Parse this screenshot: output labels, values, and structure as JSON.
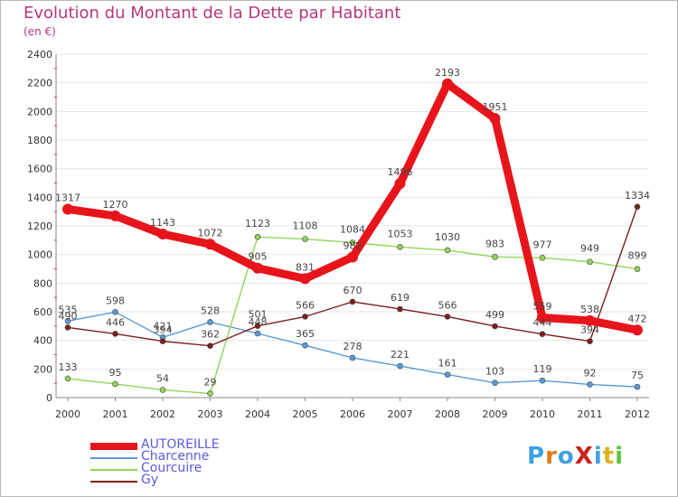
{
  "title": "Evolution du Montant de la Dette par Habitant",
  "subtitle": "(en €)",
  "logo_text": "ProXiti",
  "chart_data": {
    "type": "line",
    "title": "Evolution du Montant de la Dette par Habitant",
    "subtitle": "(en €)",
    "xlabel": "",
    "ylabel": "",
    "categories": [
      "2000",
      "2001",
      "2002",
      "2003",
      "2004",
      "2005",
      "2006",
      "2007",
      "2008",
      "2009",
      "2010",
      "2011",
      "2012"
    ],
    "ylim": [
      0,
      2400
    ],
    "yticks": [
      0,
      200,
      400,
      600,
      800,
      1000,
      1200,
      1400,
      1600,
      1800,
      2000,
      2200,
      2400
    ],
    "grid": "horizontal",
    "legend_position": "bottom-left",
    "series": [
      {
        "name": "AUTOREILLE",
        "color": "#e8141c",
        "values": [
          1317,
          1270,
          1143,
          1072,
          905,
          831,
          982,
          1496,
          2193,
          1951,
          559,
          538,
          472
        ]
      },
      {
        "name": "Charcenne",
        "color": "#5b9bd5",
        "values": [
          535,
          598,
          421,
          528,
          448,
          365,
          278,
          221,
          161,
          103,
          119,
          92,
          75
        ]
      },
      {
        "name": "Courcuire",
        "color": "#90d458",
        "values": [
          133,
          95,
          54,
          29,
          1123,
          1108,
          1084,
          1053,
          1030,
          983,
          977,
          949,
          899
        ]
      },
      {
        "name": "Gy",
        "color": "#7b1e1e",
        "values": [
          490,
          446,
          394,
          362,
          501,
          566,
          670,
          619,
          566,
          499,
          444,
          394,
          1334
        ]
      }
    ]
  }
}
